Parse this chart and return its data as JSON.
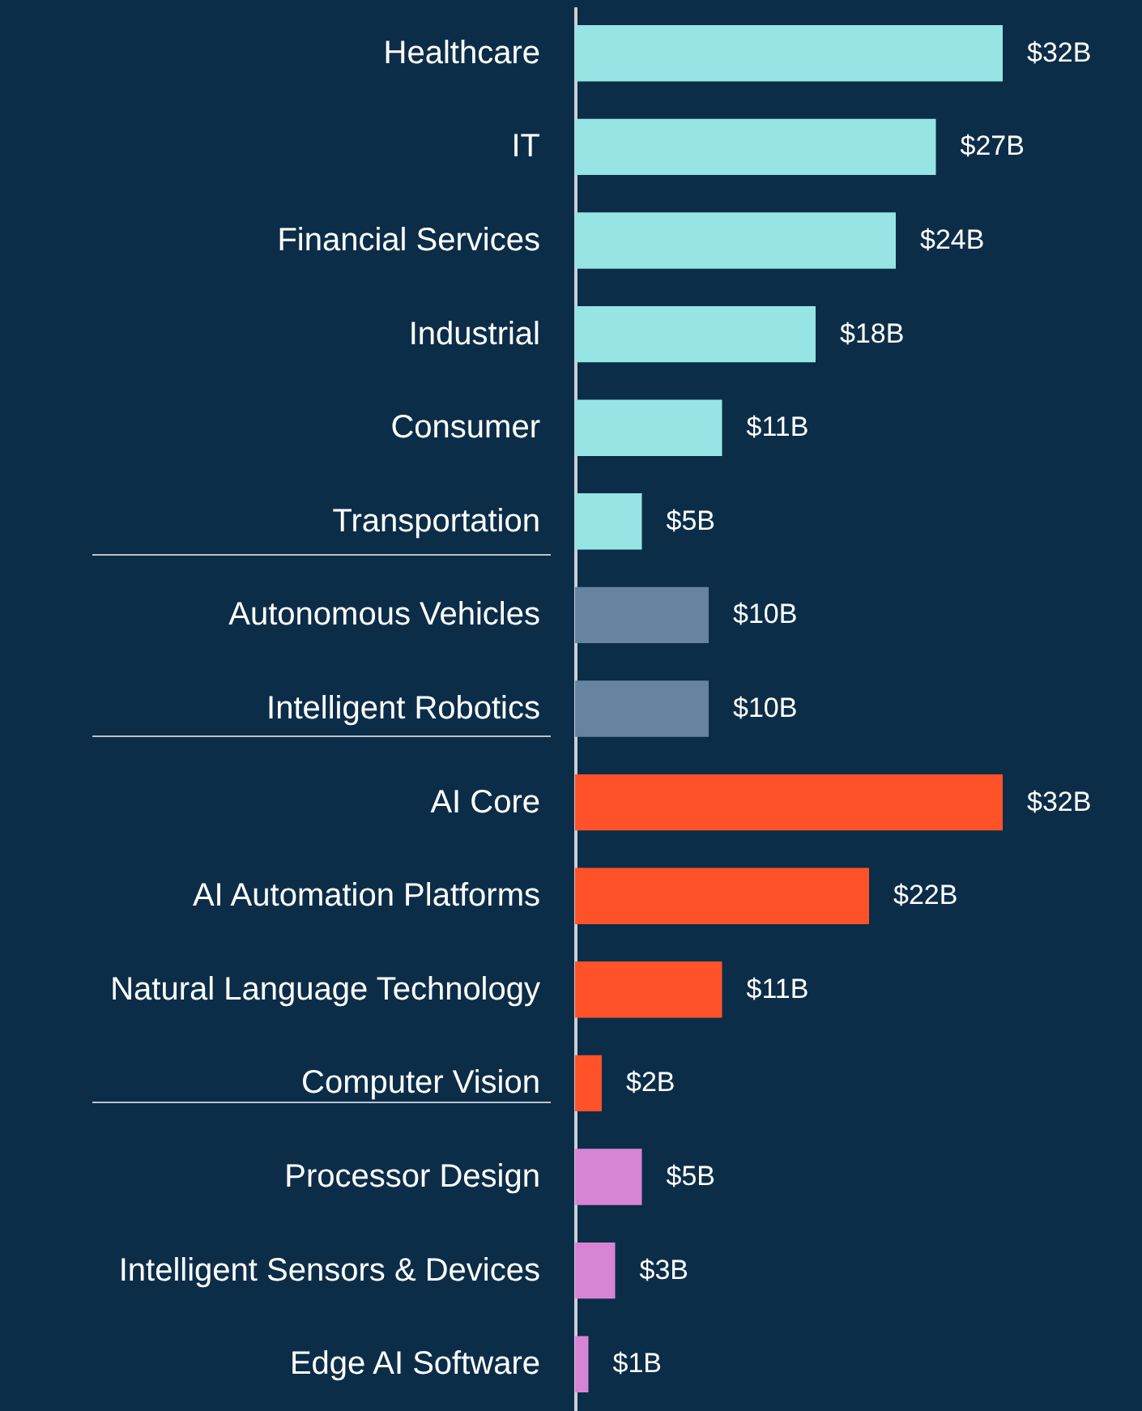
{
  "chart_data": {
    "type": "bar",
    "orientation": "horizontal",
    "categories": [
      "Healthcare",
      "IT",
      "Financial Services",
      "Industrial",
      "Consumer",
      "Transportation",
      "Autonomous Vehicles",
      "Intelligent Robotics",
      "AI Core",
      "AI Automation Platforms",
      "Natural Language Technology",
      "Computer Vision",
      "Processor Design",
      "Intelligent Sensors & Devices",
      "Edge AI Software"
    ],
    "values": [
      32,
      27,
      24,
      18,
      11,
      5,
      10,
      10,
      32,
      22,
      11,
      2,
      5,
      3,
      1
    ],
    "value_labels": [
      "$32B",
      "$27B",
      "$24B",
      "$18B",
      "$11B",
      "$5B",
      "$10B",
      "$10B",
      "$32B",
      "$22B",
      "$11B",
      "$2B",
      "$5B",
      "$3B",
      "$1B"
    ],
    "colors": [
      "#96e5e4",
      "#96e5e4",
      "#96e5e4",
      "#96e5e4",
      "#96e5e4",
      "#96e5e4",
      "#6683a0",
      "#6683a0",
      "#ff5229",
      "#ff5229",
      "#ff5229",
      "#ff5229",
      "#d884d4",
      "#d884d4",
      "#d884d4"
    ],
    "data_labels": false
  }
}
